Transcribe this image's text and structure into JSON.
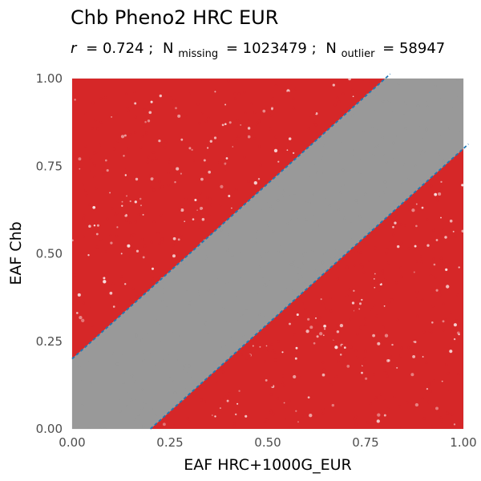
{
  "chart_data": {
    "type": "scatter",
    "title": "Chb Pheno2 HRC EUR",
    "subtitle": {
      "r_label": "r",
      "r_value": "= 0.724 ;",
      "n1": "N",
      "n1_sub": "missing",
      "n1_value": "= 1023479 ;",
      "n2": "N",
      "n2_sub": "outlier",
      "n2_value": "= 58947"
    },
    "xlabel": "EAF HRC+1000G_EUR",
    "ylabel": "EAF Chb",
    "xlim": [
      0,
      1
    ],
    "ylim": [
      0,
      1
    ],
    "x_ticks": [
      0,
      0.25,
      0.5,
      0.75,
      1
    ],
    "y_ticks": [
      0,
      0.25,
      0.5,
      0.75,
      1
    ],
    "x_tick_labels": [
      "0.00",
      "0.25",
      "0.50",
      "0.75",
      "1.00"
    ],
    "y_tick_labels": [
      "0.00",
      "0.25",
      "0.50",
      "0.75",
      "1.00"
    ],
    "grid": true,
    "series": [
      {
        "name": "outlier",
        "color": "#d62728",
        "band": "|y - x| > 0.2"
      },
      {
        "name": "non-outlier",
        "color": "#999999",
        "band": "|y - x| <= 0.2"
      }
    ],
    "lines": [
      {
        "slope": 1,
        "intercept": -0.2,
        "color": "#1f77b4",
        "style": "dashed"
      },
      {
        "slope": 1,
        "intercept": 0.2,
        "color": "#1f77b4",
        "style": "dashed"
      }
    ]
  }
}
